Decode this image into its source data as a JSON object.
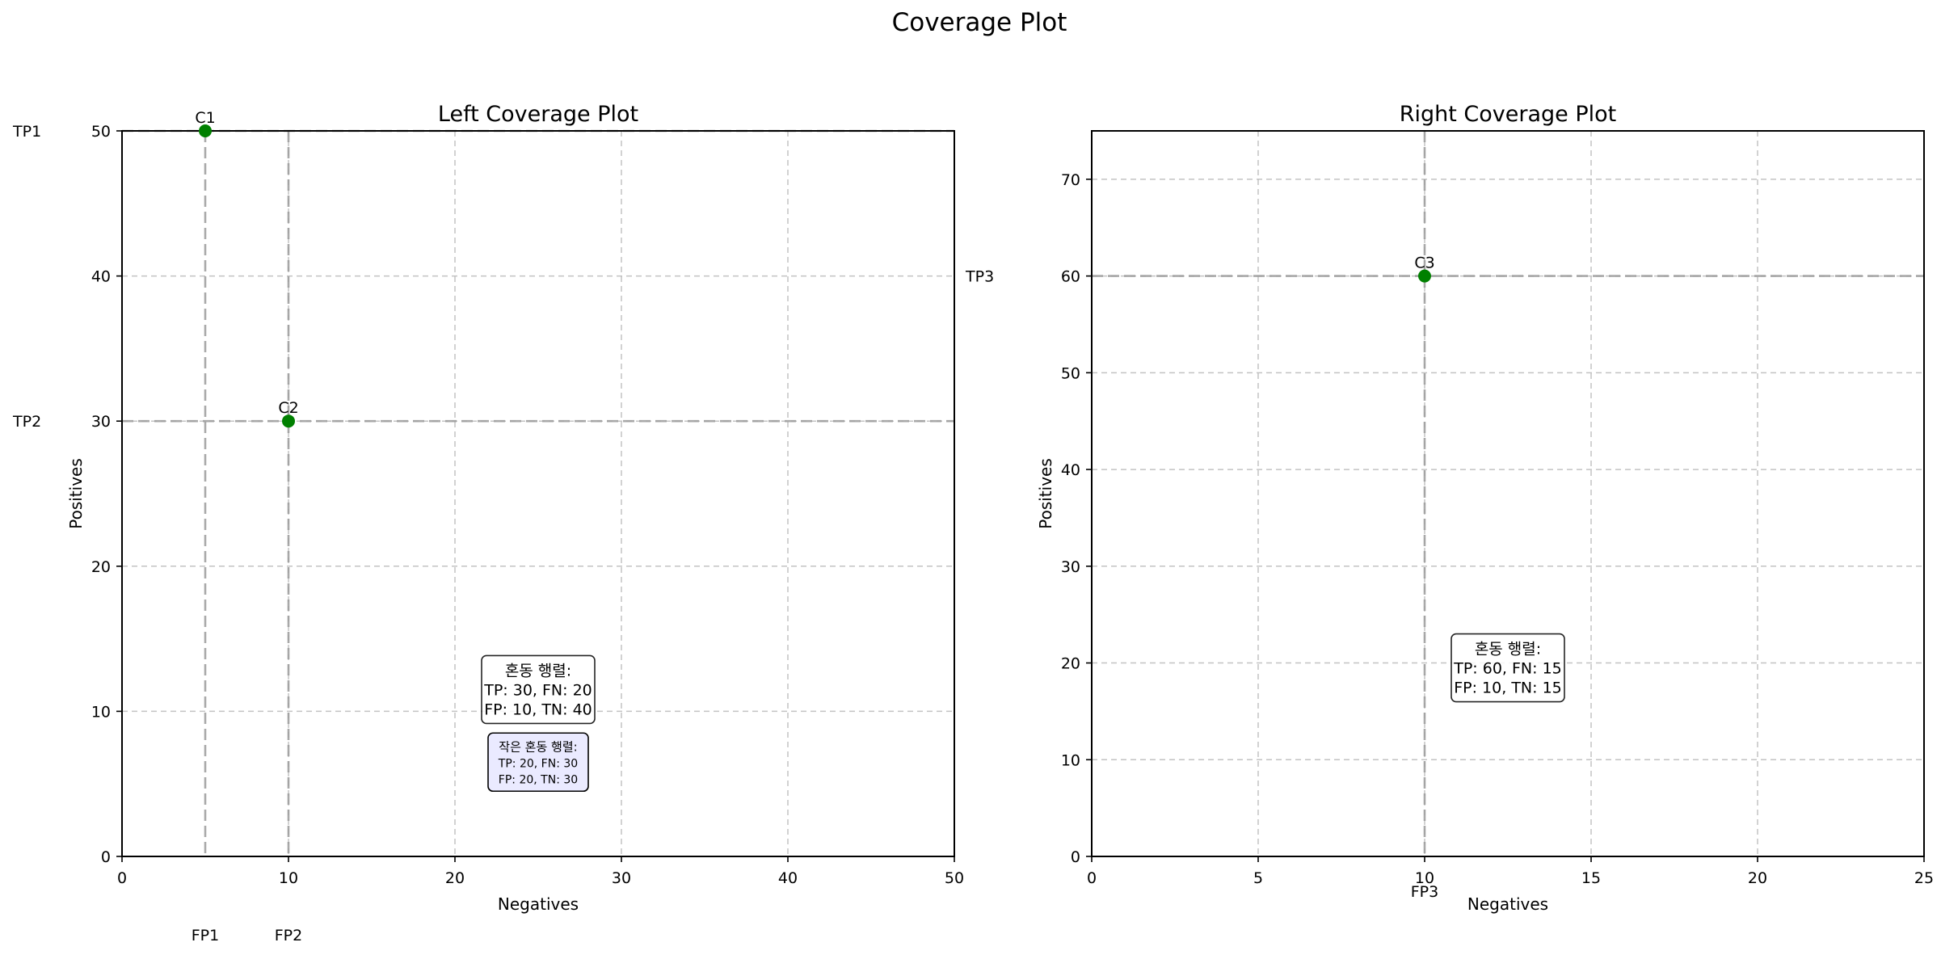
{
  "figure_title": "Coverage Plot",
  "chart_data": [
    {
      "type": "scatter",
      "id": "left",
      "title": "Left Coverage Plot",
      "xlabel": "Negatives",
      "ylabel": "Positives",
      "xlim": [
        0,
        50
      ],
      "ylim": [
        0,
        50
      ],
      "xticks": [
        0,
        10,
        20,
        30,
        40,
        50
      ],
      "yticks": [
        0,
        10,
        20,
        30,
        40,
        50
      ],
      "grid": true,
      "marker_color": "#008000",
      "points": [
        {
          "label": "C1",
          "x": 5,
          "y": 50
        },
        {
          "label": "C2",
          "x": 10,
          "y": 30
        }
      ],
      "guide_vlines": [
        5,
        10
      ],
      "guide_hlines": [
        50,
        30
      ],
      "y_annotations": [
        {
          "label": "TP1",
          "y": 50,
          "side": "left"
        },
        {
          "label": "TP2",
          "y": 30,
          "side": "left"
        },
        {
          "label": "TP3",
          "y": 40,
          "side": "right"
        }
      ],
      "x_annotations": [
        {
          "label": "FP1",
          "x": 5
        },
        {
          "label": "FP2",
          "x": 10
        }
      ],
      "text_boxes": [
        {
          "lines": [
            "혼동 행렬:",
            "TP: 30, FN: 20",
            "FP: 10, TN: 40"
          ],
          "x": 25,
          "y": 11.5,
          "style": "normal"
        },
        {
          "lines": [
            "작은 혼동 행렬:",
            "TP: 20, FN: 30",
            "FP: 20, TN: 30"
          ],
          "x": 25,
          "y": 6.5,
          "style": "small"
        }
      ]
    },
    {
      "type": "scatter",
      "id": "right",
      "title": "Right Coverage Plot",
      "xlabel": "Negatives",
      "ylabel": "Positives",
      "xlim": [
        0,
        25
      ],
      "ylim": [
        0,
        75
      ],
      "xticks": [
        0,
        5,
        10,
        15,
        20,
        25
      ],
      "yticks": [
        0,
        10,
        20,
        30,
        40,
        50,
        60,
        70
      ],
      "grid": true,
      "marker_color": "#008000",
      "points": [
        {
          "label": "C3",
          "x": 10,
          "y": 60
        }
      ],
      "guide_vlines": [
        10
      ],
      "guide_hlines": [
        60
      ],
      "y_annotations": [],
      "x_annotations": [
        {
          "label": "FP3",
          "x": 10
        }
      ],
      "text_boxes": [
        {
          "lines": [
            "혼동 행렬:",
            "TP: 60, FN: 15",
            "FP: 10, TN: 15"
          ],
          "x": 12.5,
          "y": 19.5,
          "style": "normal"
        }
      ]
    }
  ]
}
